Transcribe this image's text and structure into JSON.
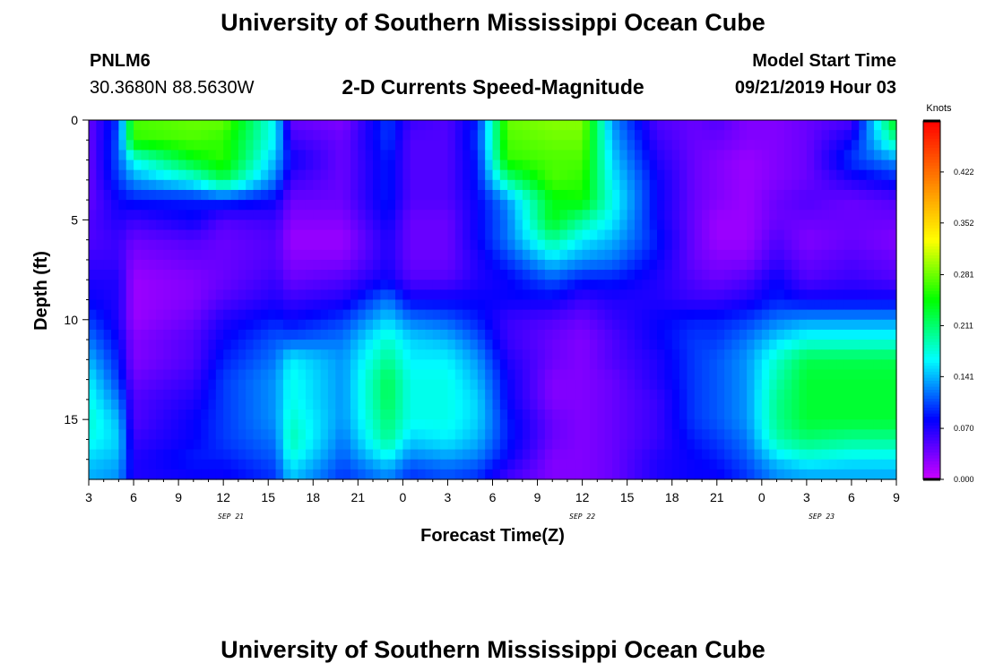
{
  "header": {
    "title": "University of Southern Mississippi Ocean Cube",
    "station_id": "PNLM6",
    "station_coords": "30.3680N 88.5630W",
    "product_title": "2-D Currents Speed-Magnitude",
    "model_start_label": "Model Start Time",
    "model_start_value": "09/21/2019 Hour 03"
  },
  "footer": {
    "title": "University of Southern Mississippi Ocean Cube"
  },
  "chart_data": {
    "type": "heatmap",
    "title": "2-D Currents Speed-Magnitude",
    "xlabel": "Forecast Time(Z)",
    "ylabel": "Depth (ft)",
    "x_tick_labels": [
      "3",
      "6",
      "9",
      "12",
      "15",
      "18",
      "21",
      "0",
      "3",
      "6",
      "9",
      "12",
      "15",
      "18",
      "21",
      "0",
      "3",
      "6",
      "9"
    ],
    "x_date_labels": [
      {
        "label": "SEP 21",
        "hour_index": 9.5
      },
      {
        "label": "SEP 22",
        "hour_index": 33
      },
      {
        "label": "SEP 23",
        "hour_index": 49
      }
    ],
    "x_range_hours": [
      0,
      54
    ],
    "y_tick_labels": [
      "0",
      "5",
      "10",
      "15"
    ],
    "y_range": [
      0,
      18
    ],
    "y_inverted": true,
    "colorbar": {
      "units": "Knots",
      "range": [
        0.0,
        0.492
      ],
      "tick_labels": [
        "0.000",
        "0.070",
        "0.141",
        "0.211",
        "0.281",
        "0.352",
        "0.422"
      ],
      "tick_values": [
        0.0,
        0.07,
        0.141,
        0.211,
        0.281,
        0.352,
        0.422
      ],
      "colormap": [
        "#cc00ff",
        "#0000ff",
        "#00ffff",
        "#00ff00",
        "#ffff00",
        "#ff8000",
        "#ff0000"
      ]
    },
    "depth_levels": [
      0,
      1,
      2,
      3,
      4,
      5,
      6,
      7,
      8,
      9,
      10,
      11,
      12,
      13,
      14,
      15,
      16,
      17,
      17.6
    ],
    "time_nodes_hours": [
      0,
      2,
      3,
      7,
      9,
      12.5,
      13.5,
      17,
      20,
      21.5,
      24,
      26,
      28,
      31,
      33,
      35,
      38,
      40.5,
      42,
      44,
      46,
      48,
      51,
      54
    ],
    "speed_grid_knots": [
      [
        0.04,
        0.1,
        0.27,
        0.28,
        0.28,
        0.16,
        0.04,
        0.03,
        0.1,
        0.06,
        0.05,
        0.09,
        0.28,
        0.29,
        0.29,
        0.13,
        0.05,
        0.04,
        0.05,
        0.03,
        0.03,
        0.04,
        0.05,
        0.25
      ],
      [
        0.04,
        0.11,
        0.26,
        0.27,
        0.26,
        0.16,
        0.06,
        0.04,
        0.1,
        0.05,
        0.05,
        0.1,
        0.27,
        0.28,
        0.28,
        0.14,
        0.06,
        0.04,
        0.04,
        0.03,
        0.03,
        0.04,
        0.08,
        0.2
      ],
      [
        0.04,
        0.11,
        0.17,
        0.24,
        0.26,
        0.14,
        0.08,
        0.04,
        0.09,
        0.05,
        0.05,
        0.09,
        0.26,
        0.27,
        0.27,
        0.15,
        0.07,
        0.04,
        0.03,
        0.02,
        0.03,
        0.04,
        0.1,
        0.13
      ],
      [
        0.04,
        0.1,
        0.13,
        0.17,
        0.22,
        0.12,
        0.06,
        0.04,
        0.09,
        0.05,
        0.05,
        0.09,
        0.2,
        0.27,
        0.26,
        0.16,
        0.08,
        0.04,
        0.03,
        0.02,
        0.03,
        0.04,
        0.07,
        0.09
      ],
      [
        0.04,
        0.08,
        0.09,
        0.09,
        0.1,
        0.08,
        0.04,
        0.04,
        0.09,
        0.05,
        0.05,
        0.08,
        0.13,
        0.24,
        0.25,
        0.17,
        0.08,
        0.04,
        0.03,
        0.02,
        0.04,
        0.05,
        0.04,
        0.05
      ],
      [
        0.05,
        0.07,
        0.06,
        0.08,
        0.05,
        0.06,
        0.03,
        0.03,
        0.08,
        0.04,
        0.04,
        0.08,
        0.12,
        0.24,
        0.2,
        0.16,
        0.08,
        0.04,
        0.02,
        0.02,
        0.04,
        0.04,
        0.04,
        0.04
      ],
      [
        0.05,
        0.06,
        0.04,
        0.05,
        0.04,
        0.05,
        0.02,
        0.02,
        0.07,
        0.04,
        0.04,
        0.08,
        0.12,
        0.2,
        0.16,
        0.14,
        0.09,
        0.04,
        0.02,
        0.02,
        0.05,
        0.03,
        0.04,
        0.03
      ],
      [
        0.06,
        0.06,
        0.03,
        0.04,
        0.04,
        0.05,
        0.03,
        0.03,
        0.07,
        0.04,
        0.04,
        0.07,
        0.1,
        0.15,
        0.13,
        0.12,
        0.08,
        0.04,
        0.03,
        0.03,
        0.06,
        0.04,
        0.05,
        0.04
      ],
      [
        0.07,
        0.07,
        0.02,
        0.03,
        0.04,
        0.06,
        0.04,
        0.05,
        0.08,
        0.05,
        0.05,
        0.07,
        0.08,
        0.11,
        0.09,
        0.09,
        0.07,
        0.05,
        0.04,
        0.05,
        0.08,
        0.05,
        0.06,
        0.05
      ],
      [
        0.08,
        0.07,
        0.02,
        0.03,
        0.05,
        0.07,
        0.06,
        0.07,
        0.12,
        0.08,
        0.08,
        0.08,
        0.08,
        0.08,
        0.06,
        0.07,
        0.07,
        0.06,
        0.06,
        0.07,
        0.09,
        0.08,
        0.08,
        0.08
      ],
      [
        0.1,
        0.07,
        0.02,
        0.04,
        0.07,
        0.09,
        0.08,
        0.1,
        0.15,
        0.12,
        0.11,
        0.09,
        0.06,
        0.05,
        0.04,
        0.06,
        0.08,
        0.09,
        0.09,
        0.1,
        0.12,
        0.13,
        0.13,
        0.13
      ],
      [
        0.12,
        0.08,
        0.03,
        0.05,
        0.08,
        0.11,
        0.11,
        0.12,
        0.18,
        0.15,
        0.14,
        0.11,
        0.06,
        0.04,
        0.03,
        0.05,
        0.08,
        0.1,
        0.1,
        0.12,
        0.15,
        0.17,
        0.17,
        0.17
      ],
      [
        0.14,
        0.09,
        0.03,
        0.05,
        0.09,
        0.12,
        0.16,
        0.13,
        0.2,
        0.16,
        0.16,
        0.13,
        0.07,
        0.04,
        0.03,
        0.05,
        0.07,
        0.1,
        0.11,
        0.13,
        0.18,
        0.22,
        0.22,
        0.22
      ],
      [
        0.16,
        0.1,
        0.04,
        0.06,
        0.1,
        0.13,
        0.17,
        0.13,
        0.22,
        0.17,
        0.17,
        0.14,
        0.08,
        0.03,
        0.03,
        0.04,
        0.07,
        0.1,
        0.11,
        0.13,
        0.19,
        0.23,
        0.23,
        0.23
      ],
      [
        0.17,
        0.12,
        0.05,
        0.07,
        0.1,
        0.13,
        0.17,
        0.13,
        0.22,
        0.17,
        0.17,
        0.15,
        0.08,
        0.03,
        0.03,
        0.04,
        0.06,
        0.1,
        0.11,
        0.13,
        0.2,
        0.23,
        0.23,
        0.23
      ],
      [
        0.18,
        0.14,
        0.05,
        0.08,
        0.1,
        0.13,
        0.18,
        0.13,
        0.21,
        0.17,
        0.17,
        0.15,
        0.09,
        0.04,
        0.03,
        0.04,
        0.06,
        0.1,
        0.11,
        0.13,
        0.2,
        0.23,
        0.23,
        0.23
      ],
      [
        0.17,
        0.15,
        0.06,
        0.08,
        0.1,
        0.12,
        0.19,
        0.12,
        0.2,
        0.15,
        0.16,
        0.14,
        0.09,
        0.04,
        0.03,
        0.04,
        0.06,
        0.09,
        0.1,
        0.12,
        0.19,
        0.21,
        0.2,
        0.2
      ],
      [
        0.15,
        0.14,
        0.07,
        0.09,
        0.09,
        0.11,
        0.17,
        0.11,
        0.16,
        0.12,
        0.13,
        0.12,
        0.08,
        0.03,
        0.03,
        0.04,
        0.07,
        0.08,
        0.09,
        0.11,
        0.15,
        0.17,
        0.16,
        0.16
      ],
      [
        0.14,
        0.13,
        0.07,
        0.08,
        0.08,
        0.1,
        0.15,
        0.1,
        0.13,
        0.1,
        0.11,
        0.1,
        0.06,
        0.03,
        0.03,
        0.04,
        0.07,
        0.08,
        0.08,
        0.1,
        0.13,
        0.14,
        0.14,
        0.14
      ]
    ]
  }
}
